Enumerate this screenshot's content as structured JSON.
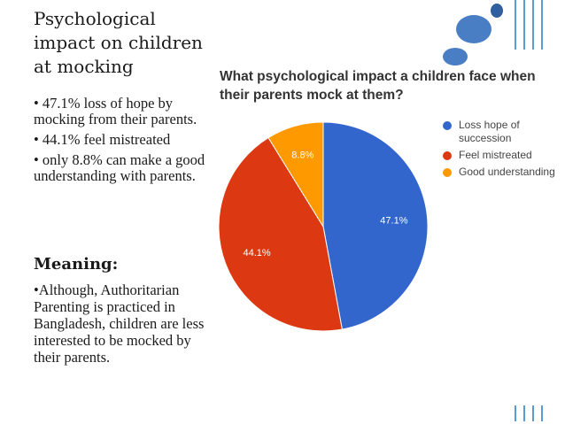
{
  "slide": {
    "title": "Psychological impact on children at mocking",
    "bullets": [
      "• 47.1% loss of hope by mocking from their parents.",
      "• 44.1% feel mistreated",
      "• only 8.8% can make a good understanding with parents."
    ],
    "meaning_heading": "Meaning:",
    "meaning_text": "•Although, Authoritarian Parenting is practiced in Bangladesh, children are less interested to be mocked by their parents."
  },
  "colors": {
    "loss_hope": "#3366cc",
    "feel_mistreated": "#dc3912",
    "good_understanding": "#ff9900",
    "decoration": "#5b9bd5"
  },
  "chart_data": {
    "type": "pie",
    "title": "What psychological impact a children face when their parents mock at them?",
    "slices": [
      {
        "label": "Loss hope of succession",
        "value": 47.1,
        "display": "47.1%",
        "color": "#3366cc"
      },
      {
        "label": "Feel mistreated",
        "value": 44.1,
        "display": "44.1%",
        "color": "#dc3912"
      },
      {
        "label": "Good understanding",
        "value": 8.8,
        "display": "8.8%",
        "color": "#ff9900"
      }
    ],
    "legend_position": "right"
  }
}
